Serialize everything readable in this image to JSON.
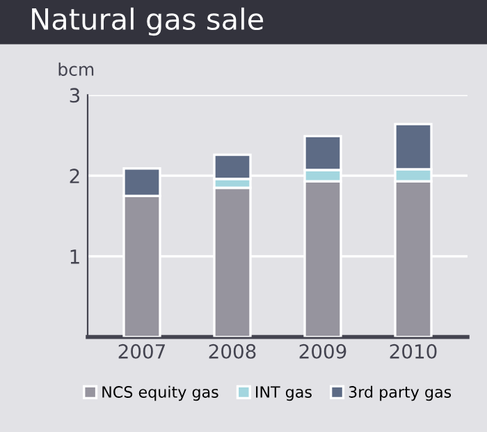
{
  "chart_data": {
    "type": "bar",
    "title": "Natural gas sale",
    "ylabel": "bcm",
    "stacked": true,
    "categories": [
      "2007",
      "2008",
      "2009",
      "2010"
    ],
    "series": [
      {
        "name": "NCS equity gas",
        "color": "#96949e",
        "values": [
          1.75,
          1.85,
          1.93,
          1.93
        ]
      },
      {
        "name": "INT gas",
        "color": "#a3d6df",
        "values": [
          null,
          0.11,
          0.14,
          0.15
        ]
      },
      {
        "name": "3rd party gas",
        "color": "#5d6b85",
        "values": [
          0.34,
          0.3,
          0.42,
          0.56
        ]
      }
    ],
    "ylim": [
      0,
      3
    ],
    "yticks": [
      1,
      2,
      3
    ],
    "grid": "y",
    "legend": "bottom"
  }
}
